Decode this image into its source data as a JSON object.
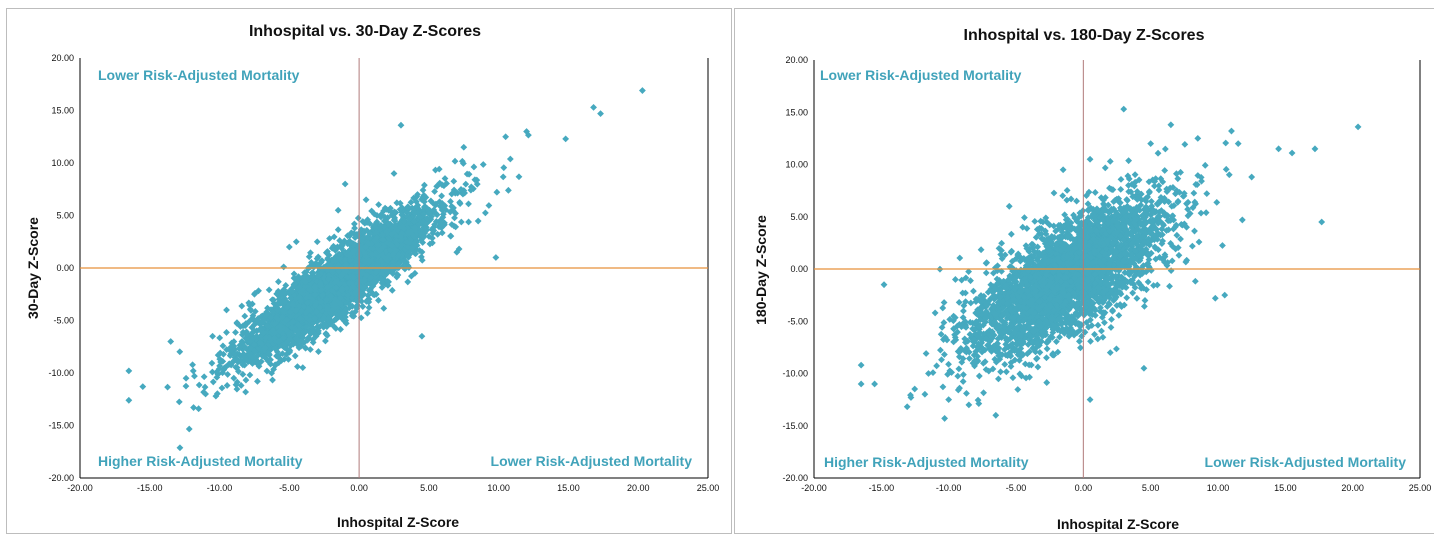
{
  "colors": {
    "marker": "#46A9BF",
    "quadrant_text": "#41A3BA",
    "vertical_line": "#B07A7A",
    "horizontal_line": "#E8913A",
    "axis": "#000000"
  },
  "chart_data": [
    {
      "type": "scatter",
      "title": "Inhospital vs. 30-Day Z-Scores",
      "xlabel": "Inhospital Z-Score",
      "ylabel": "30-Day Z-Score",
      "xlim": [
        -20,
        25
      ],
      "ylim": [
        -20,
        20
      ],
      "x_ticks": [
        "-20.00",
        "-15.00",
        "-10.00",
        "-5.00",
        "0.00",
        "5.00",
        "10.00",
        "15.00",
        "20.00",
        "25.00"
      ],
      "y_ticks": [
        "20.00",
        "15.00",
        "10.00",
        "5.00",
        "0.00",
        "-5.00",
        "-10.00",
        "-15.00",
        "-20.00"
      ],
      "reference_lines": {
        "x": 0,
        "y": 0
      },
      "quadrant_labels": {
        "top_left": "Lower Risk-Adjusted Mortality",
        "bottom_left": "Higher Risk-Adjusted Mortality",
        "bottom_right": "Lower Risk-Adjusted Mortality"
      },
      "series": [
        {
          "trend": {
            "slope": 0.95,
            "intercept": 0.0,
            "spread": 1.6,
            "x_mean": -1.5,
            "x_sd": 3.6,
            "n": 3500
          },
          "points": [
            [
              -16.5,
              -12.6
            ],
            [
              -16.5,
              -9.8
            ],
            [
              -15.5,
              -11.3
            ],
            [
              -13.5,
              -7.0
            ],
            [
              -12.4,
              -10.5
            ],
            [
              -11.5,
              -13.4
            ],
            [
              -11.8,
              -10.3
            ],
            [
              -11.0,
              -12.0
            ],
            [
              -10.5,
              -6.5
            ],
            [
              -9.5,
              -4.0
            ],
            [
              -7.5,
              -2.5
            ],
            [
              -5.0,
              2.0
            ],
            [
              -4.5,
              2.5
            ],
            [
              -3.0,
              2.5
            ],
            [
              -1.5,
              5.5
            ],
            [
              -1.0,
              8.0
            ],
            [
              0.5,
              6.5
            ],
            [
              2.5,
              9.0
            ],
            [
              3.0,
              13.6
            ],
            [
              7.0,
              1.5
            ],
            [
              9.8,
              1.0
            ],
            [
              7.5,
              11.5
            ],
            [
              10.5,
              12.5
            ],
            [
              12.0,
              13.0
            ],
            [
              14.8,
              12.3
            ],
            [
              16.8,
              15.3
            ],
            [
              17.3,
              14.7
            ],
            [
              20.3,
              16.9
            ],
            [
              4.0,
              -0.5
            ],
            [
              3.5,
              2.0
            ],
            [
              6.8,
              4.0
            ],
            [
              4.5,
              -6.5
            ]
          ]
        }
      ]
    },
    {
      "type": "scatter",
      "title": "Inhospital vs. 180-Day Z-Scores",
      "xlabel": "Inhospital Z-Score",
      "ylabel": "180-Day Z-Score",
      "xlim": [
        -20,
        25
      ],
      "ylim": [
        -20,
        20
      ],
      "x_ticks": [
        "-20.00",
        "-15.00",
        "-10.00",
        "-5.00",
        "0.00",
        "5.00",
        "10.00",
        "15.00",
        "20.00",
        "25.00"
      ],
      "y_ticks": [
        "20.00",
        "15.00",
        "10.00",
        "5.00",
        "0.00",
        "-5.00",
        "-10.00",
        "-15.00",
        "-20.00"
      ],
      "reference_lines": {
        "x": 0,
        "y": 0
      },
      "quadrant_labels": {
        "top_left": "Lower Risk-Adjusted Mortality",
        "bottom_left": "Higher Risk-Adjusted Mortality",
        "bottom_right": "Lower Risk-Adjusted Mortality"
      },
      "series": [
        {
          "trend": {
            "slope": 0.7,
            "intercept": 0.0,
            "spread": 2.6,
            "x_mean": -1.2,
            "x_sd": 3.6,
            "n": 3500
          },
          "points": [
            [
              -16.5,
              -9.2
            ],
            [
              -16.5,
              -11.0
            ],
            [
              -15.5,
              -11.0
            ],
            [
              -14.8,
              -1.5
            ],
            [
              -12.8,
              -12.3
            ],
            [
              -10.3,
              -14.3
            ],
            [
              -11.5,
              -10.0
            ],
            [
              -10.0,
              -12.5
            ],
            [
              -8.5,
              -13.0
            ],
            [
              -6.5,
              -14.0
            ],
            [
              -9.5,
              -1.0
            ],
            [
              -5.5,
              6.0
            ],
            [
              -4.5,
              4.0
            ],
            [
              -3.0,
              4.5
            ],
            [
              -1.5,
              9.5
            ],
            [
              -0.5,
              6.5
            ],
            [
              0.5,
              10.5
            ],
            [
              3.0,
              15.3
            ],
            [
              2.0,
              10.3
            ],
            [
              5.0,
              12.0
            ],
            [
              6.5,
              13.8
            ],
            [
              8.5,
              12.5
            ],
            [
              11.0,
              13.2
            ],
            [
              11.5,
              12.0
            ],
            [
              12.5,
              8.8
            ],
            [
              14.5,
              11.5
            ],
            [
              15.5,
              11.1
            ],
            [
              17.2,
              11.5
            ],
            [
              17.7,
              4.5
            ],
            [
              20.4,
              13.6
            ],
            [
              9.8,
              -2.8
            ],
            [
              10.5,
              -2.5
            ],
            [
              4.5,
              -9.5
            ],
            [
              2.0,
              -8.0
            ],
            [
              0.5,
              -12.5
            ]
          ]
        }
      ]
    }
  ]
}
